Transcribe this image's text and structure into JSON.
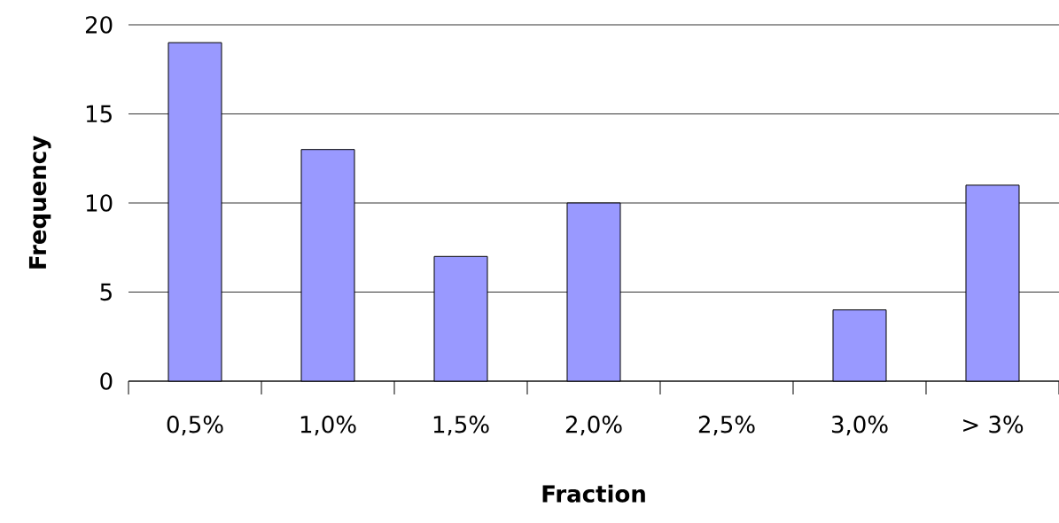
{
  "chart_data": {
    "type": "bar",
    "xlabel": "Fraction",
    "ylabel": "Frequency",
    "categories": [
      "0,5%",
      "1,0%",
      "1,5%",
      "2,0%",
      "2,5%",
      "3,0%",
      "> 3%"
    ],
    "values": [
      19,
      13,
      7,
      10,
      0,
      4,
      11
    ],
    "color": "#9999ff",
    "ylim": [
      0,
      20
    ],
    "yticks": [
      0,
      5,
      10,
      15,
      20
    ],
    "grid": "y"
  }
}
